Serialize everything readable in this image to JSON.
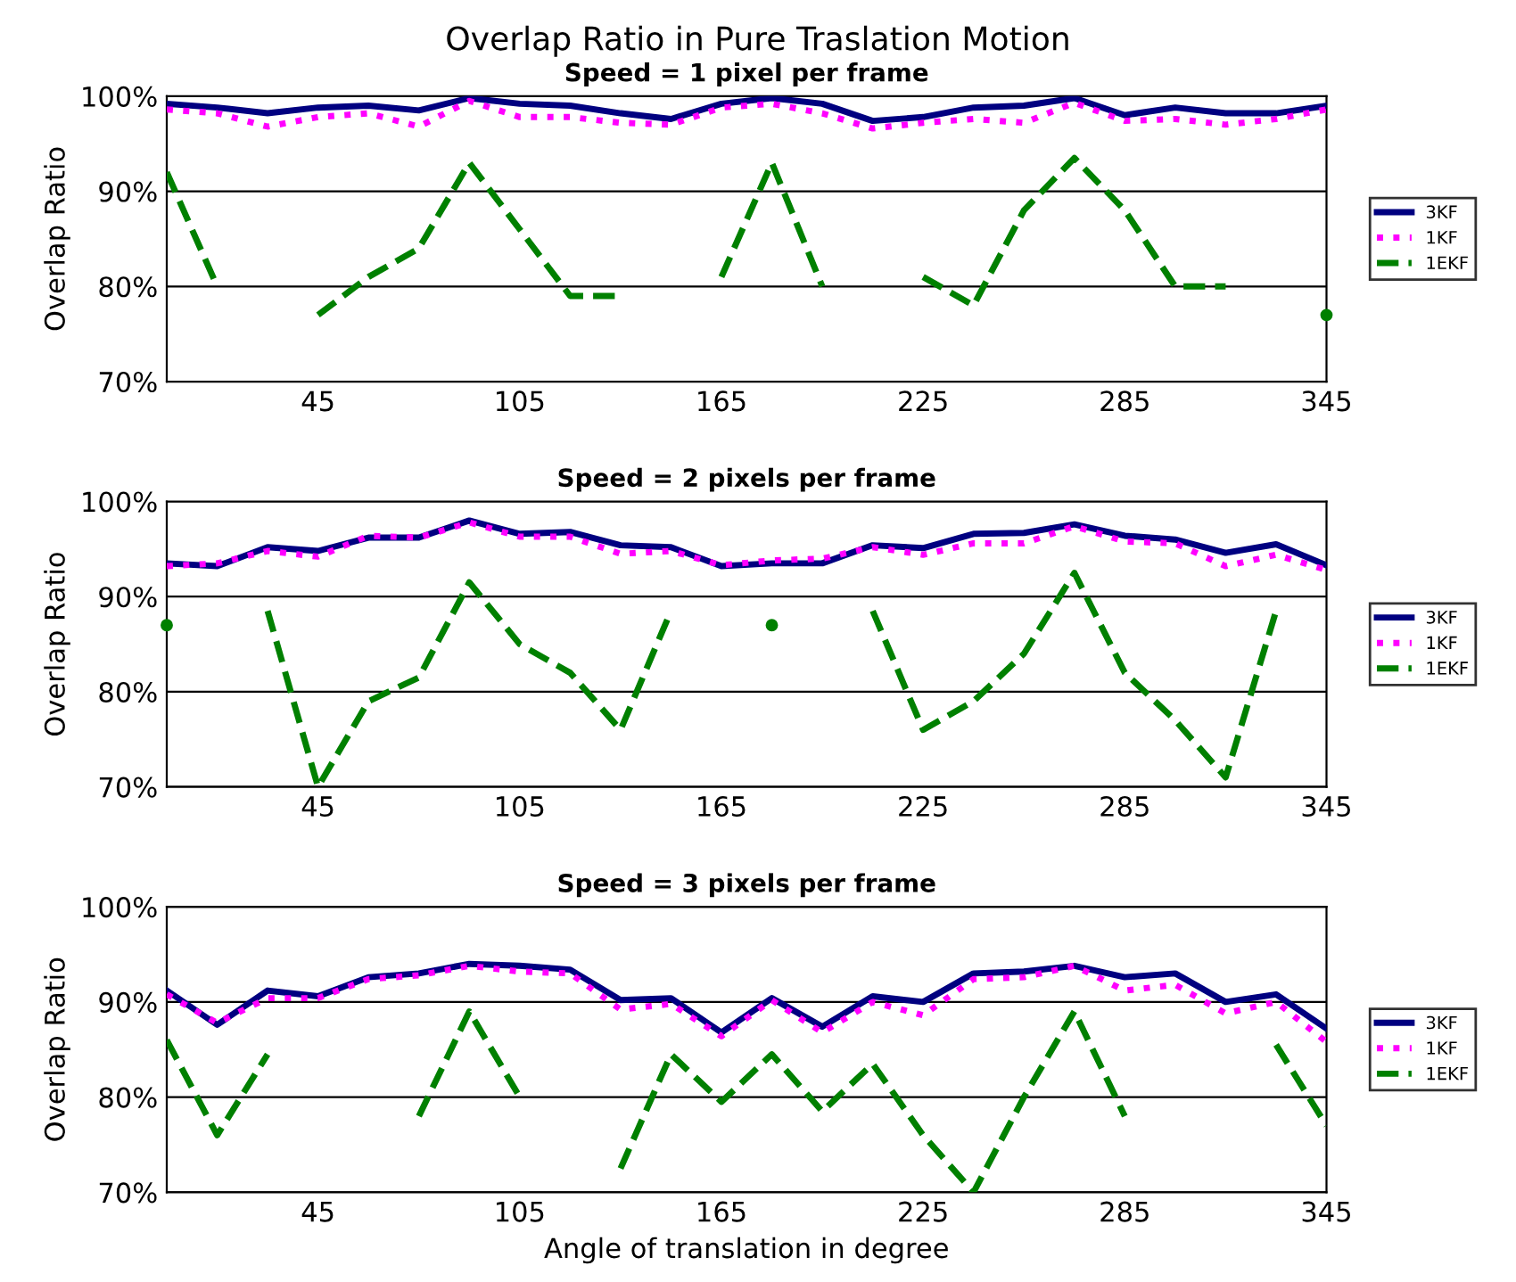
{
  "chart_data": [
    {
      "type": "line",
      "title": "Overlap Ratio in Pure Traslation Motion",
      "subtitle": "Speed = 1 pixel per frame",
      "ylabel": "Overlap Ratio",
      "x": [
        0,
        15,
        30,
        45,
        60,
        75,
        90,
        105,
        120,
        135,
        150,
        165,
        180,
        195,
        210,
        225,
        240,
        255,
        270,
        285,
        300,
        315,
        330,
        345
      ],
      "xlim": [
        0,
        345
      ],
      "xticks": [
        45,
        105,
        165,
        225,
        285,
        345
      ],
      "ylim": [
        70,
        100
      ],
      "yticks": [
        {
          "value": 70,
          "label": "70%"
        },
        {
          "value": 80,
          "label": "80%"
        },
        {
          "value": 90,
          "label": "90%"
        },
        {
          "value": 100,
          "label": "100%"
        }
      ],
      "grid": "y",
      "legend": "right",
      "series": [
        {
          "name": "3KF",
          "color": "#000080",
          "line_style": "solid",
          "values": [
            99.2,
            98.8,
            98.2,
            98.8,
            99,
            98.5,
            99.8,
            99.2,
            99,
            98.2,
            97.6,
            99.2,
            99.8,
            99.2,
            97.4,
            97.8,
            98.8,
            99,
            99.8,
            98,
            98.8,
            98.2,
            98.2,
            99
          ]
        },
        {
          "name": "1KF",
          "color": "#ff00ff",
          "line_style": "dotted",
          "values": [
            98.6,
            98.2,
            96.8,
            97.8,
            98.2,
            96.8,
            99.5,
            97.8,
            97.8,
            97.2,
            97,
            98.8,
            99.2,
            98.2,
            96.6,
            97.2,
            97.6,
            97.2,
            99.3,
            97.4,
            97.6,
            97,
            97.6,
            98.6
          ]
        },
        {
          "name": "1EKF",
          "color": "#008000",
          "line_style": "dashed",
          "values": [
            92,
            80,
            null,
            77,
            81,
            84,
            93,
            86,
            79,
            79,
            null,
            81,
            93,
            80,
            null,
            81,
            78,
            88,
            93.5,
            88,
            80,
            80,
            null,
            77
          ]
        }
      ]
    },
    {
      "type": "line",
      "title": "Speed = 2 pixels per frame",
      "ylabel": "Overlap Ratio",
      "x": [
        0,
        15,
        30,
        45,
        60,
        75,
        90,
        105,
        120,
        135,
        150,
        165,
        180,
        195,
        210,
        225,
        240,
        255,
        270,
        285,
        300,
        315,
        330,
        345
      ],
      "xlim": [
        0,
        345
      ],
      "xticks": [
        45,
        105,
        165,
        225,
        285,
        345
      ],
      "ylim": [
        70,
        100
      ],
      "yticks": [
        {
          "value": 70,
          "label": "70%"
        },
        {
          "value": 80,
          "label": "80%"
        },
        {
          "value": 90,
          "label": "90%"
        },
        {
          "value": 100,
          "label": "100%"
        }
      ],
      "grid": "y",
      "legend": "right",
      "series": [
        {
          "name": "3KF",
          "color": "#000080",
          "line_style": "solid",
          "values": [
            93.5,
            93.2,
            95.2,
            94.8,
            96.2,
            96.2,
            98,
            96.6,
            96.8,
            95.4,
            95.2,
            93.2,
            93.5,
            93.5,
            95.4,
            95.1,
            96.6,
            96.7,
            97.6,
            96.4,
            96,
            94.6,
            95.5,
            93.3
          ]
        },
        {
          "name": "1KF",
          "color": "#ff00ff",
          "line_style": "dotted",
          "values": [
            93.2,
            93.5,
            94.8,
            94.2,
            96.4,
            96.2,
            97.8,
            96.3,
            96.3,
            94.5,
            94.8,
            93.3,
            93.8,
            94,
            95.2,
            94.4,
            95.6,
            95.6,
            97.4,
            95.8,
            95.6,
            93.2,
            94.4,
            92.8
          ]
        },
        {
          "name": "1EKF",
          "color": "#008000",
          "line_style": "dashed",
          "values": [
            87,
            null,
            88.5,
            70,
            79,
            81.5,
            91.5,
            85,
            82,
            76,
            88.5,
            null,
            87,
            null,
            88.5,
            76,
            79,
            84,
            92.5,
            82,
            77,
            71,
            88.5,
            null
          ]
        }
      ]
    },
    {
      "type": "line",
      "title": "Speed = 3 pixels per frame",
      "xlabel": "Angle of translation in degree",
      "ylabel": "Overlap Ratio",
      "x": [
        0,
        15,
        30,
        45,
        60,
        75,
        90,
        105,
        120,
        135,
        150,
        165,
        180,
        195,
        210,
        225,
        240,
        255,
        270,
        285,
        300,
        315,
        330,
        345
      ],
      "xlim": [
        0,
        345
      ],
      "xticks": [
        45,
        105,
        165,
        225,
        285,
        345
      ],
      "ylim": [
        70,
        100
      ],
      "yticks": [
        {
          "value": 70,
          "label": "70%"
        },
        {
          "value": 80,
          "label": "80%"
        },
        {
          "value": 90,
          "label": "90%"
        },
        {
          "value": 100,
          "label": "100%"
        }
      ],
      "grid": "y",
      "legend": "right",
      "series": [
        {
          "name": "3KF",
          "color": "#000080",
          "line_style": "solid",
          "values": [
            91.2,
            87.6,
            91.2,
            90.6,
            92.6,
            93,
            94,
            93.8,
            93.4,
            90.2,
            90.4,
            86.8,
            90.4,
            87.4,
            90.6,
            90,
            93,
            93.2,
            93.8,
            92.6,
            93,
            90,
            90.8,
            87.2
          ]
        },
        {
          "name": "1KF",
          "color": "#ff00ff",
          "line_style": "dotted",
          "values": [
            90.8,
            87.8,
            90.4,
            90.4,
            92.4,
            92.8,
            93.8,
            93.2,
            93,
            89.2,
            89.8,
            86.4,
            90.2,
            86.8,
            90,
            88.6,
            92.4,
            92.6,
            93.8,
            91.2,
            91.8,
            88.8,
            90,
            85.8
          ]
        },
        {
          "name": "1EKF",
          "color": "#008000",
          "line_style": "dashed",
          "values": [
            86,
            76,
            84.5,
            null,
            null,
            78,
            89,
            80,
            null,
            72.5,
            84.5,
            79.5,
            84.5,
            78.5,
            83.5,
            76,
            70,
            80,
            89,
            78,
            null,
            null,
            85.5,
            77
          ]
        }
      ]
    }
  ]
}
